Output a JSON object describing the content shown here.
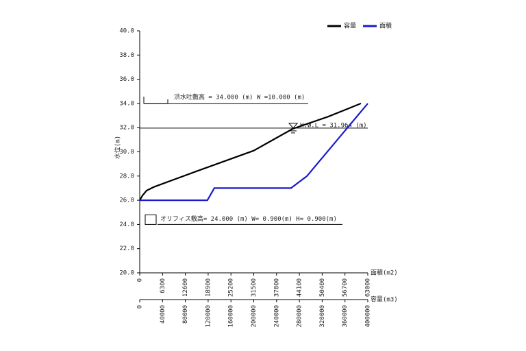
{
  "chart_data": {
    "type": "line",
    "y_label": "水位(m)",
    "ylim": [
      20,
      40
    ],
    "yticks": [
      {
        "value": 20,
        "label": "20.0"
      },
      {
        "value": 22,
        "label": "22.0"
      },
      {
        "value": 24,
        "label": "24.0"
      },
      {
        "value": 26,
        "label": "26.0"
      },
      {
        "value": 28,
        "label": "28.0"
      },
      {
        "value": 30,
        "label": "30.0"
      },
      {
        "value": 32,
        "label": "32.0"
      },
      {
        "value": 34,
        "label": "34.0"
      },
      {
        "value": 36,
        "label": "36.0"
      },
      {
        "value": 38,
        "label": "38.0"
      },
      {
        "value": 40,
        "label": "40.0"
      }
    ],
    "x_label": "面積(m2)",
    "xlim": [
      0,
      63000
    ],
    "xticks": [
      0,
      6300,
      12600,
      18900,
      25200,
      31500,
      37800,
      44100,
      50400,
      56700,
      63000
    ],
    "x2_label": "容量(m3)",
    "x2lim": [
      0,
      400000
    ],
    "x2ticks": [
      0,
      40000,
      80000,
      120000,
      160000,
      200000,
      240000,
      280000,
      320000,
      360000,
      400000
    ],
    "series": [
      {
        "name": "容量",
        "color": "#000000",
        "axis": "x2",
        "x": [
          0,
          5000,
          12000,
          25000,
          100000,
          200000,
          268000,
          330000,
          388000
        ],
        "values": [
          26.0,
          26.4,
          26.8,
          27.1,
          28.4,
          30.1,
          31.9,
          32.9,
          34.0
        ]
      },
      {
        "name": "面積",
        "color": "#1a1acc",
        "axis": "x",
        "x": [
          0,
          18700,
          20600,
          41800,
          46200,
          63000
        ],
        "values": [
          26.0,
          26.0,
          27.0,
          27.0,
          28.0,
          34.0
        ]
      }
    ],
    "annotations": [
      {
        "label": "洪水吐敷高 = 34.000 (m) W =10.000 (m)",
        "value": 34.0
      },
      {
        "label": "H.W.L = 31.964 (m)",
        "value": 31.964
      },
      {
        "label": "オリフィス敷高= 24.000 (m) W= 0.900(m) H= 0.900(m)",
        "value": 24.0
      }
    ]
  }
}
